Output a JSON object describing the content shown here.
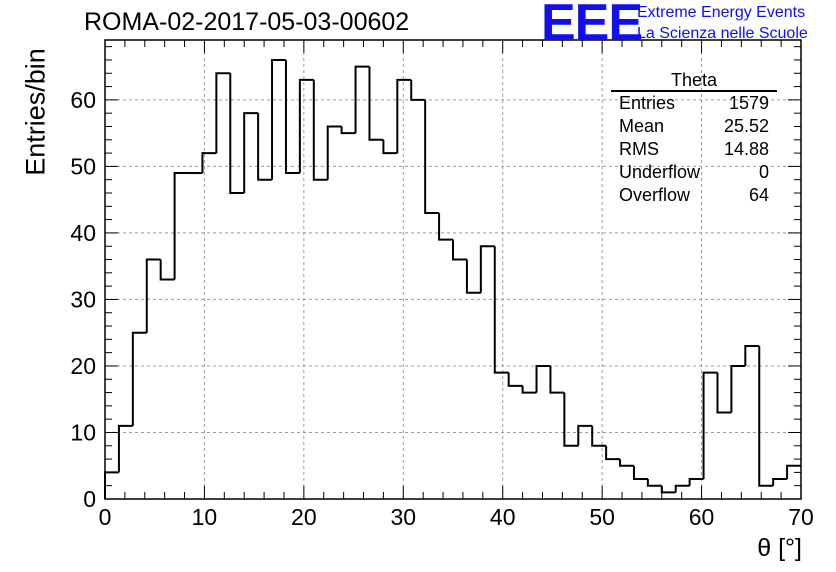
{
  "header": {
    "run_title": "ROMA-02-2017-05-03-00602",
    "logo": "EEE",
    "logo_line1": "Extreme Energy Events",
    "logo_line2": "La Scienza nelle Scuole",
    "logo_color": "#1010ee"
  },
  "stats_box": {
    "title": "Theta",
    "rows": [
      {
        "label": "Entries",
        "value": "1579"
      },
      {
        "label": "Mean",
        "value": "25.52"
      },
      {
        "label": "RMS",
        "value": "14.88"
      },
      {
        "label": "Underflow",
        "value": "0"
      },
      {
        "label": "Overflow",
        "value": "64"
      }
    ]
  },
  "chart_data": {
    "type": "bar",
    "style": "step-histogram",
    "xlabel": "θ [°]",
    "ylabel": "Entries/bin",
    "xlim": [
      0,
      70
    ],
    "ylim": [
      0,
      69
    ],
    "bin_width": 1.4,
    "xticks": [
      0,
      10,
      20,
      30,
      40,
      50,
      60,
      70
    ],
    "yticks": [
      0,
      10,
      20,
      30,
      40,
      50,
      60
    ],
    "grid": true,
    "line_color": "#000000",
    "values": [
      4,
      11,
      25,
      36,
      33,
      49,
      49,
      52,
      64,
      46,
      58,
      48,
      66,
      49,
      63,
      48,
      56,
      55,
      65,
      54,
      52,
      63,
      60,
      43,
      39,
      36,
      31,
      38,
      19,
      17,
      16,
      20,
      16,
      8,
      11,
      8,
      6,
      5,
      3,
      2,
      1,
      2,
      3,
      19,
      13,
      20,
      23,
      2,
      3,
      5
    ]
  }
}
